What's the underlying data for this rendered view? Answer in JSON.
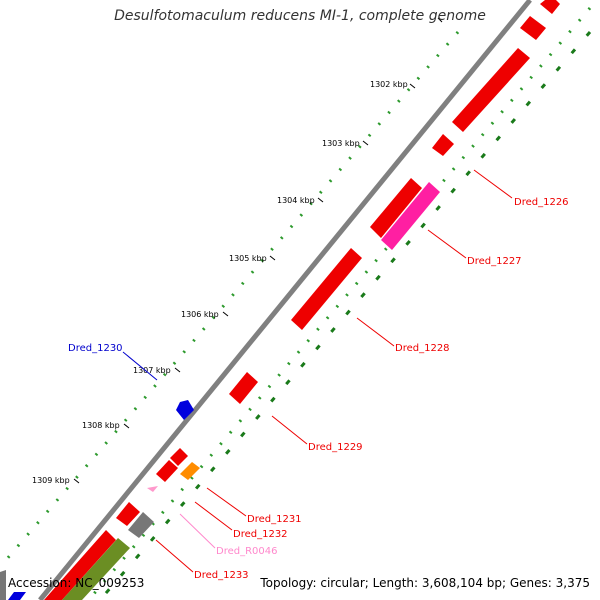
{
  "title": "Desulfotomaculum reducens MI-1, complete genome",
  "footer": {
    "accession": "Accession: NC_009253",
    "summary": "Topology: circular; Length: 3,608,104 bp; Genes: 3,375"
  },
  "colors": {
    "backbone": "#808080",
    "tick_dots": "#2e9a2e",
    "inner_dots": "#1a7a1a",
    "cds": "#ee0000",
    "pseudo": "#ff1fa2",
    "rna": "#ff99cc",
    "other_blue": "#0000dd",
    "orange": "#ff8c00",
    "gray": "#777777",
    "olive": "#6b8e23"
  },
  "ticks": [
    "1302 kbp",
    "1303 kbp",
    "1304 kbp",
    "1305 kbp",
    "1306 kbp",
    "1307 kbp",
    "1308 kbp",
    "1309 kbp"
  ],
  "genes": [
    {
      "name": "Dred_1226",
      "color": "#ee0000"
    },
    {
      "name": "Dred_1227",
      "color": "#ee0000"
    },
    {
      "name": "Dred_1228",
      "color": "#ee0000"
    },
    {
      "name": "Dred_1229",
      "color": "#ee0000"
    },
    {
      "name": "Dred_1230",
      "color": "#0000cc"
    },
    {
      "name": "Dred_1231",
      "color": "#ee0000"
    },
    {
      "name": "Dred_1232",
      "color": "#ee0000"
    },
    {
      "name": "Dred_R0046",
      "color": "#ff88cc"
    },
    {
      "name": "Dred_1233",
      "color": "#ee0000"
    }
  ]
}
